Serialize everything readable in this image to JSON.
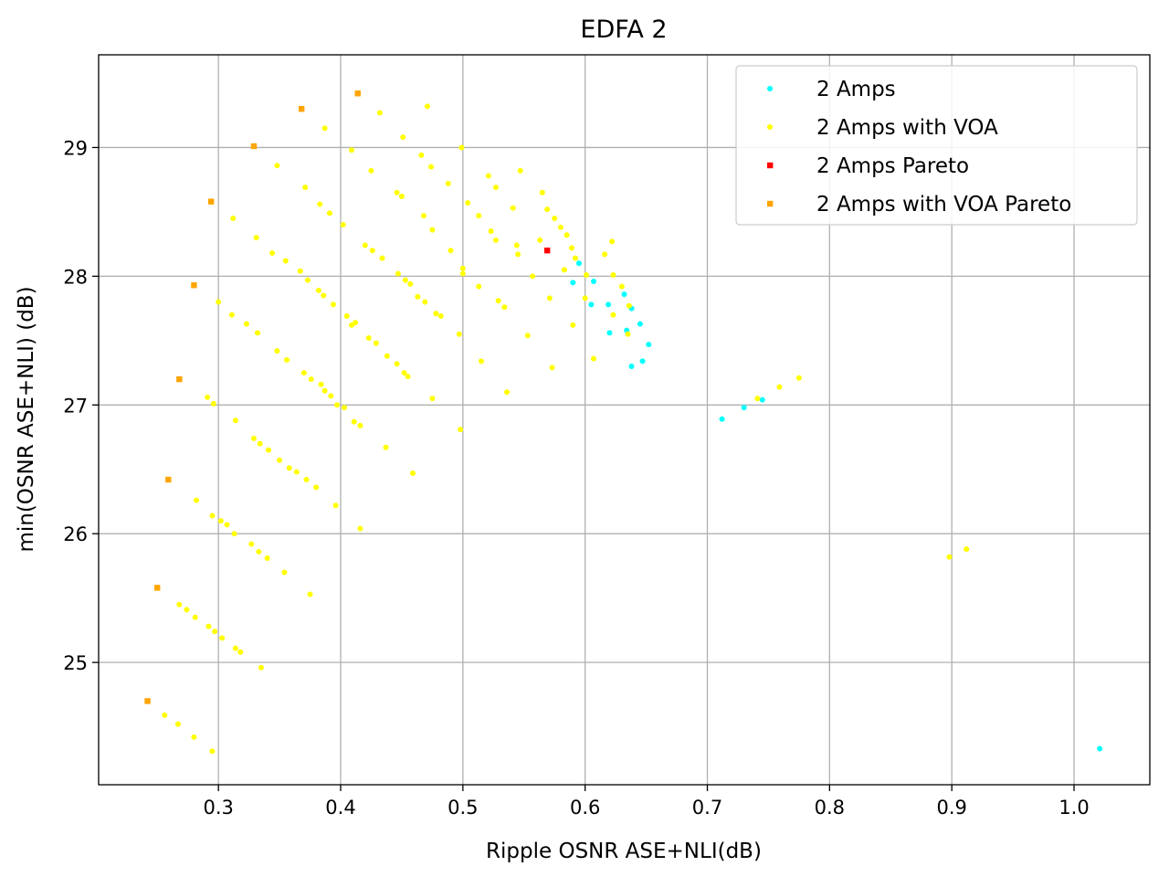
{
  "chart_data": {
    "type": "scatter",
    "title": "EDFA 2",
    "xlabel": "Ripple OSNR ASE+NLI(dB)",
    "ylabel": "min(OSNR ASE+NLI) (dB)",
    "xlim": [
      0.202,
      1.062
    ],
    "ylim": [
      24.05,
      29.72
    ],
    "xticks": [
      0.3,
      0.4,
      0.5,
      0.6,
      0.7,
      0.8,
      0.9,
      1.0
    ],
    "xtick_labels": [
      "0.3",
      "0.4",
      "0.5",
      "0.6",
      "0.7",
      "0.8",
      "0.9",
      "1.0"
    ],
    "yticks": [
      25,
      26,
      27,
      28,
      29
    ],
    "ytick_labels": [
      "25",
      "26",
      "27",
      "28",
      "29"
    ],
    "grid": true,
    "legend_position": "top-right",
    "series": [
      {
        "name": "2 Amps",
        "color": "#00ffff",
        "marker": "circle",
        "points": [
          [
            0.595,
            28.1
          ],
          [
            0.59,
            27.95
          ],
          [
            0.607,
            27.96
          ],
          [
            0.605,
            27.78
          ],
          [
            0.619,
            27.78
          ],
          [
            0.62,
            27.56
          ],
          [
            0.632,
            27.86
          ],
          [
            0.638,
            27.75
          ],
          [
            0.634,
            27.58
          ],
          [
            0.645,
            27.63
          ],
          [
            0.652,
            27.47
          ],
          [
            0.647,
            27.34
          ],
          [
            0.638,
            27.3
          ],
          [
            0.712,
            26.89
          ],
          [
            0.73,
            26.98
          ],
          [
            0.745,
            27.04
          ],
          [
            1.021,
            24.33
          ]
        ]
      },
      {
        "name": "2 Amps with VOA",
        "color": "#ffff00",
        "marker": "circle",
        "points": [
          [
            0.471,
            29.32
          ],
          [
            0.432,
            29.27
          ],
          [
            0.387,
            29.15
          ],
          [
            0.451,
            29.08
          ],
          [
            0.499,
            29.0
          ],
          [
            0.409,
            28.98
          ],
          [
            0.466,
            28.94
          ],
          [
            0.348,
            28.86
          ],
          [
            0.474,
            28.85
          ],
          [
            0.425,
            28.82
          ],
          [
            0.547,
            28.82
          ],
          [
            0.521,
            28.78
          ],
          [
            0.371,
            28.69
          ],
          [
            0.488,
            28.72
          ],
          [
            0.527,
            28.69
          ],
          [
            0.446,
            28.65
          ],
          [
            0.565,
            28.65
          ],
          [
            0.383,
            28.56
          ],
          [
            0.45,
            28.62
          ],
          [
            0.504,
            28.57
          ],
          [
            0.541,
            28.53
          ],
          [
            0.513,
            28.47
          ],
          [
            0.569,
            28.52
          ],
          [
            0.391,
            28.49
          ],
          [
            0.468,
            28.47
          ],
          [
            0.575,
            28.45
          ],
          [
            0.312,
            28.45
          ],
          [
            0.402,
            28.4
          ],
          [
            0.523,
            28.35
          ],
          [
            0.58,
            28.38
          ],
          [
            0.475,
            28.36
          ],
          [
            0.331,
            28.3
          ],
          [
            0.527,
            28.28
          ],
          [
            0.585,
            28.32
          ],
          [
            0.42,
            28.24
          ],
          [
            0.544,
            28.24
          ],
          [
            0.563,
            28.28
          ],
          [
            0.589,
            28.22
          ],
          [
            0.426,
            28.2
          ],
          [
            0.616,
            28.17
          ],
          [
            0.622,
            28.27
          ],
          [
            0.344,
            28.18
          ],
          [
            0.49,
            28.2
          ],
          [
            0.545,
            28.17
          ],
          [
            0.434,
            28.14
          ],
          [
            0.355,
            28.12
          ],
          [
            0.583,
            28.05
          ],
          [
            0.5,
            28.06
          ],
          [
            0.592,
            28.14
          ],
          [
            0.367,
            28.04
          ],
          [
            0.447,
            28.02
          ],
          [
            0.601,
            28.01
          ],
          [
            0.557,
            28.0
          ],
          [
            0.623,
            28.01
          ],
          [
            0.453,
            27.97
          ],
          [
            0.373,
            27.97
          ],
          [
            0.5,
            28.02
          ],
          [
            0.513,
            27.92
          ],
          [
            0.457,
            27.94
          ],
          [
            0.63,
            27.92
          ],
          [
            0.382,
            27.89
          ],
          [
            0.6,
            27.83
          ],
          [
            0.386,
            27.85
          ],
          [
            0.463,
            27.84
          ],
          [
            0.529,
            27.81
          ],
          [
            0.571,
            27.83
          ],
          [
            0.3,
            27.8
          ],
          [
            0.394,
            27.78
          ],
          [
            0.469,
            27.8
          ],
          [
            0.534,
            27.76
          ],
          [
            0.636,
            27.77
          ],
          [
            0.311,
            27.7
          ],
          [
            0.405,
            27.69
          ],
          [
            0.478,
            27.71
          ],
          [
            0.623,
            27.7
          ],
          [
            0.412,
            27.64
          ],
          [
            0.323,
            27.63
          ],
          [
            0.482,
            27.69
          ],
          [
            0.59,
            27.62
          ],
          [
            0.409,
            27.62
          ],
          [
            0.332,
            27.56
          ],
          [
            0.423,
            27.52
          ],
          [
            0.553,
            27.54
          ],
          [
            0.497,
            27.55
          ],
          [
            0.429,
            27.48
          ],
          [
            0.348,
            27.42
          ],
          [
            0.515,
            27.34
          ],
          [
            0.607,
            27.36
          ],
          [
            0.438,
            27.38
          ],
          [
            0.635,
            27.55
          ],
          [
            0.356,
            27.35
          ],
          [
            0.446,
            27.32
          ],
          [
            0.573,
            27.29
          ],
          [
            0.37,
            27.25
          ],
          [
            0.452,
            27.25
          ],
          [
            0.376,
            27.2
          ],
          [
            0.384,
            27.16
          ],
          [
            0.536,
            27.1
          ],
          [
            0.387,
            27.11
          ],
          [
            0.455,
            27.22
          ],
          [
            0.291,
            27.06
          ],
          [
            0.392,
            27.07
          ],
          [
            0.475,
            27.05
          ],
          [
            0.296,
            27.01
          ],
          [
            0.397,
            27.0
          ],
          [
            0.403,
            26.98
          ],
          [
            0.741,
            27.05
          ],
          [
            0.759,
            27.14
          ],
          [
            0.775,
            27.21
          ],
          [
            0.314,
            26.88
          ],
          [
            0.411,
            26.87
          ],
          [
            0.416,
            26.84
          ],
          [
            0.498,
            26.81
          ],
          [
            0.329,
            26.74
          ],
          [
            0.334,
            26.7
          ],
          [
            0.341,
            26.65
          ],
          [
            0.437,
            26.67
          ],
          [
            0.35,
            26.57
          ],
          [
            0.358,
            26.51
          ],
          [
            0.364,
            26.48
          ],
          [
            0.459,
            26.47
          ],
          [
            0.372,
            26.42
          ],
          [
            0.38,
            26.36
          ],
          [
            0.396,
            26.22
          ],
          [
            0.282,
            26.26
          ],
          [
            0.295,
            26.14
          ],
          [
            0.302,
            26.1
          ],
          [
            0.307,
            26.07
          ],
          [
            0.313,
            26.0
          ],
          [
            0.416,
            26.04
          ],
          [
            0.327,
            25.92
          ],
          [
            0.333,
            25.86
          ],
          [
            0.34,
            25.81
          ],
          [
            0.354,
            25.7
          ],
          [
            0.375,
            25.53
          ],
          [
            0.898,
            25.82
          ],
          [
            0.912,
            25.88
          ],
          [
            0.268,
            25.45
          ],
          [
            0.274,
            25.41
          ],
          [
            0.281,
            25.35
          ],
          [
            0.292,
            25.28
          ],
          [
            0.297,
            25.24
          ],
          [
            0.303,
            25.19
          ],
          [
            0.314,
            25.11
          ],
          [
            0.318,
            25.08
          ],
          [
            0.335,
            24.96
          ],
          [
            0.256,
            24.59
          ],
          [
            0.267,
            24.52
          ],
          [
            0.28,
            24.42
          ],
          [
            0.295,
            24.31
          ]
        ]
      },
      {
        "name": "2 Amps Pareto",
        "color": "#ff0000",
        "marker": "square",
        "points": [
          [
            0.569,
            28.2
          ]
        ]
      },
      {
        "name": "2 Amps with VOA Pareto",
        "color": "#ffa500",
        "marker": "square",
        "points": [
          [
            0.414,
            29.42
          ],
          [
            0.368,
            29.3
          ],
          [
            0.329,
            29.01
          ],
          [
            0.294,
            28.58
          ],
          [
            0.28,
            27.93
          ],
          [
            0.268,
            27.2
          ],
          [
            0.259,
            26.42
          ],
          [
            0.25,
            25.58
          ],
          [
            0.242,
            24.7
          ]
        ]
      }
    ]
  }
}
